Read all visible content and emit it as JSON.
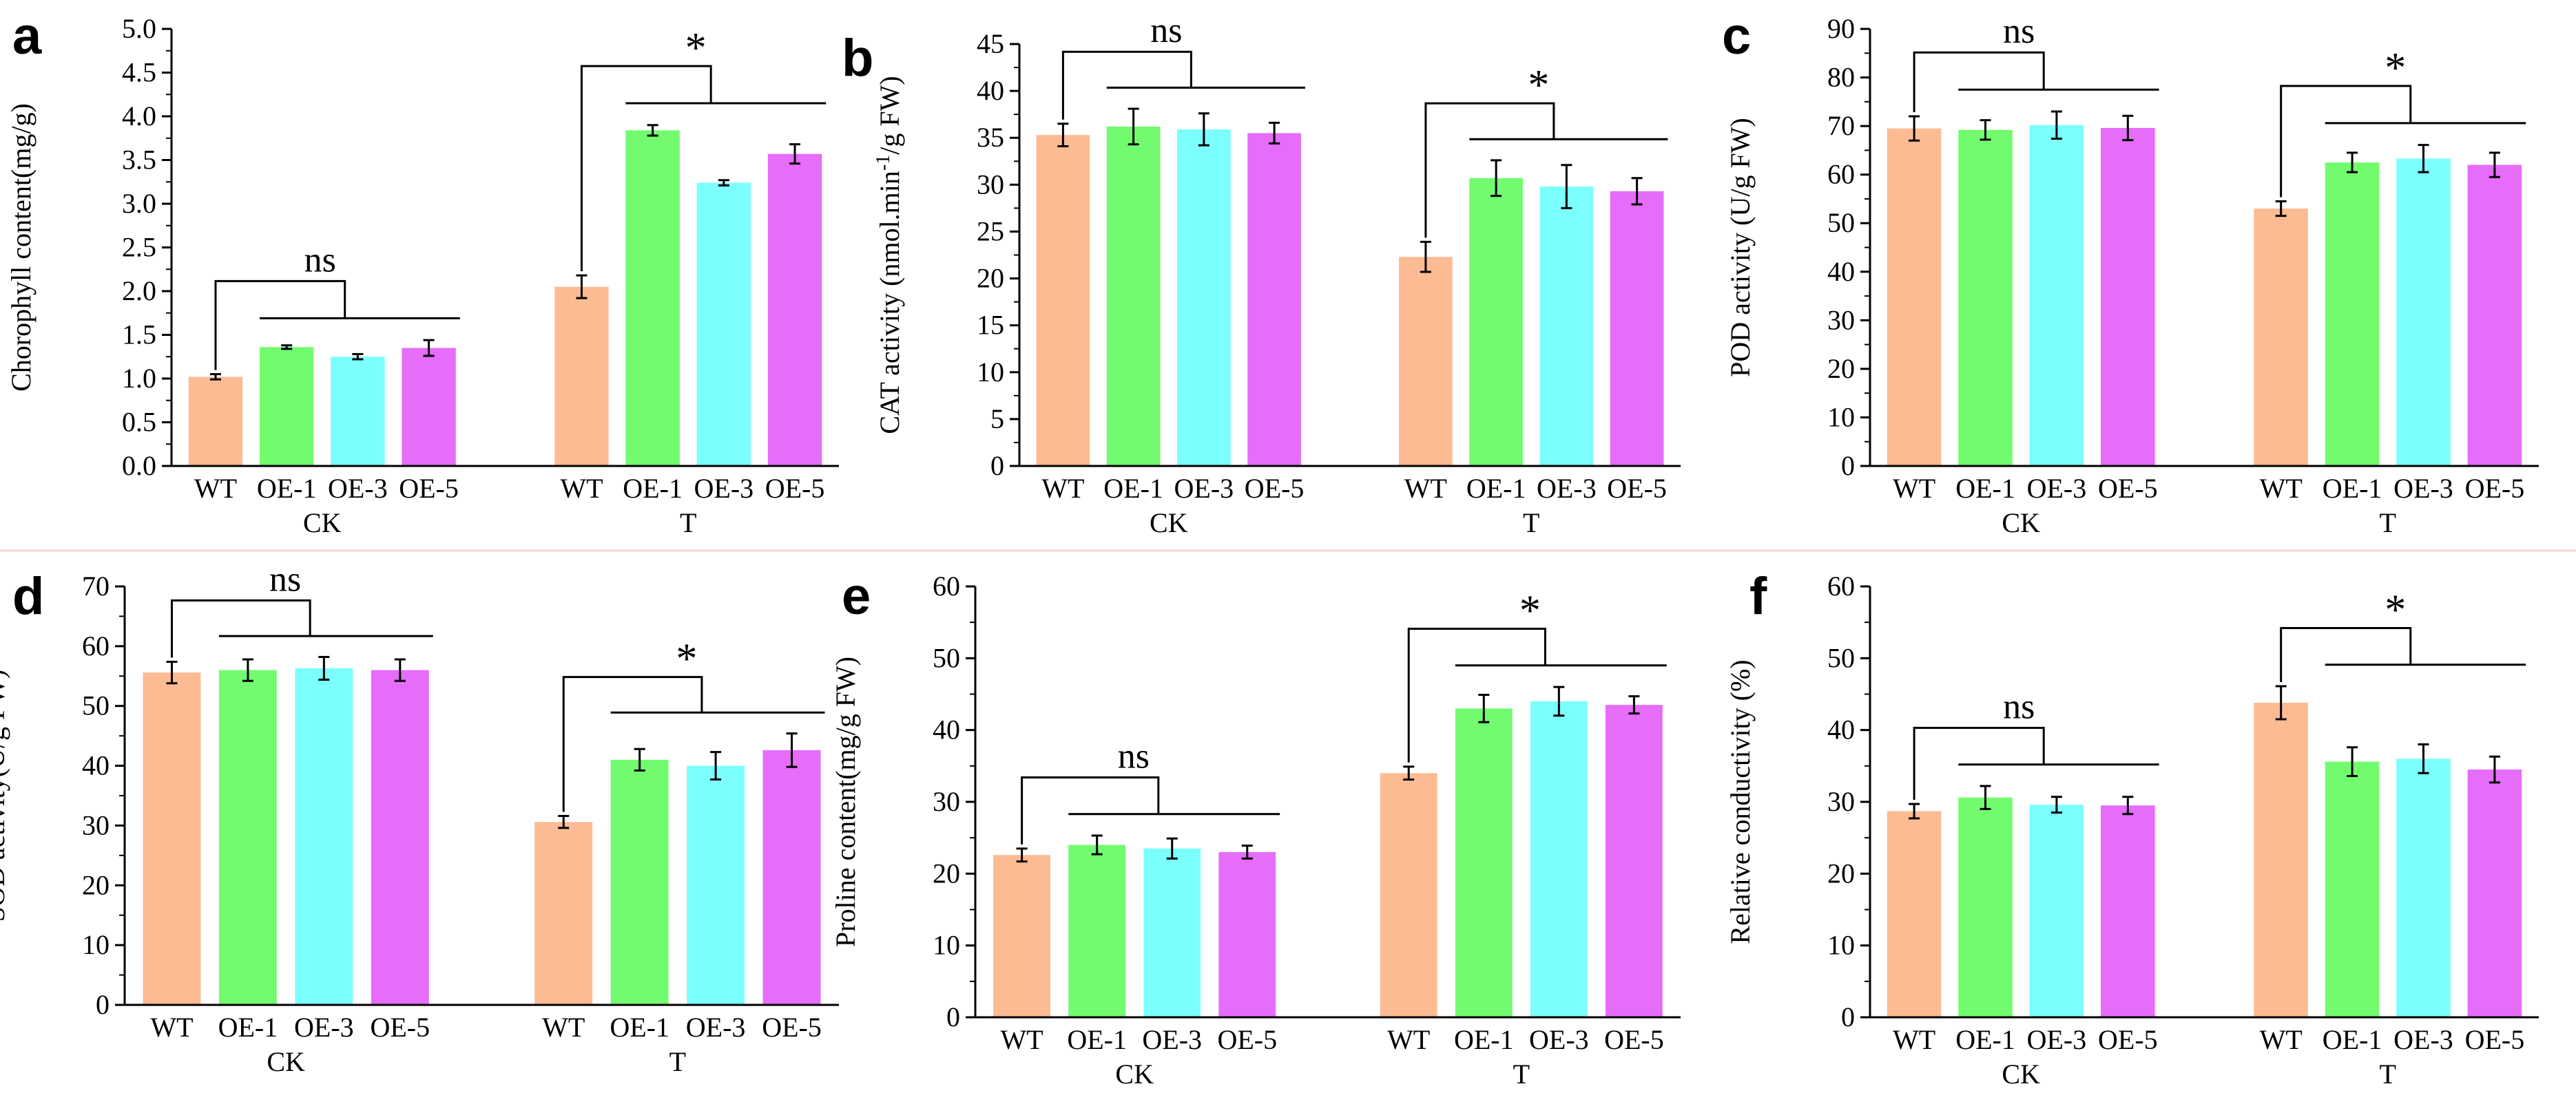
{
  "figure": {
    "group_labels": [
      "CK",
      "T"
    ],
    "bar_labels": [
      "WT",
      "OE-1",
      "OE-3",
      "OE-5"
    ],
    "colors": {
      "WT": "#FDBB94",
      "OE-1": "#73FB6F",
      "OE-3": "#7BFFFF",
      "OE-5": "#E66CFA",
      "axis": "#000000",
      "divider": "#F5D6D6"
    }
  },
  "chart_data": [
    {
      "type": "bar",
      "panel": "a",
      "ylabel": "Chorophyll content(mg/g)",
      "ylim": [
        0,
        5.0
      ],
      "yticks": [
        "0.0",
        "0.5",
        "1.0",
        "1.5",
        "2.0",
        "2.5",
        "3.0",
        "3.5",
        "4.0",
        "4.5",
        "5.0"
      ],
      "categories": [
        "CK",
        "T"
      ],
      "series": [
        {
          "name": "WT",
          "values": [
            1.02,
            2.05
          ],
          "errors": [
            0.03,
            0.13
          ]
        },
        {
          "name": "OE-1",
          "values": [
            1.36,
            3.84
          ],
          "errors": [
            0.02,
            0.06
          ]
        },
        {
          "name": "OE-3",
          "values": [
            1.25,
            3.24
          ],
          "errors": [
            0.03,
            0.03
          ]
        },
        {
          "name": "OE-5",
          "values": [
            1.35,
            3.57
          ],
          "errors": [
            0.09,
            0.11
          ]
        }
      ],
      "annotations": {
        "CK": "ns",
        "T": "*"
      }
    },
    {
      "type": "bar",
      "panel": "b",
      "ylabel": "CAT activity (nmol.min-1/g FW)",
      "ylabel_parts": [
        "CAT activity (nmol.min",
        "-1",
        "/g FW)"
      ],
      "ylim": [
        0,
        45
      ],
      "yticks": [
        "0",
        "5",
        "10",
        "15",
        "20",
        "25",
        "30",
        "35",
        "40",
        "45"
      ],
      "categories": [
        "CK",
        "T"
      ],
      "series": [
        {
          "name": "WT",
          "values": [
            35.3,
            22.3
          ],
          "errors": [
            1.2,
            1.6
          ]
        },
        {
          "name": "OE-1",
          "values": [
            36.2,
            30.7
          ],
          "errors": [
            1.9,
            1.9
          ]
        },
        {
          "name": "OE-3",
          "values": [
            35.9,
            29.8
          ],
          "errors": [
            1.7,
            2.3
          ]
        },
        {
          "name": "OE-5",
          "values": [
            35.5,
            29.3
          ],
          "errors": [
            1.1,
            1.4
          ]
        }
      ],
      "annotations": {
        "CK": "ns",
        "T": "*"
      }
    },
    {
      "type": "bar",
      "panel": "c",
      "ylabel": "POD activity (U/g FW)",
      "ylim": [
        0,
        90
      ],
      "yticks": [
        "0",
        "10",
        "20",
        "30",
        "40",
        "50",
        "60",
        "70",
        "80",
        "90"
      ],
      "categories": [
        "CK",
        "T"
      ],
      "series": [
        {
          "name": "WT",
          "values": [
            69.5,
            53.0
          ],
          "errors": [
            2.5,
            1.5
          ]
        },
        {
          "name": "OE-1",
          "values": [
            69.2,
            62.5
          ],
          "errors": [
            2.0,
            2.0
          ]
        },
        {
          "name": "OE-3",
          "values": [
            70.2,
            63.3
          ],
          "errors": [
            2.8,
            2.8
          ]
        },
        {
          "name": "OE-5",
          "values": [
            69.6,
            62.0
          ],
          "errors": [
            2.5,
            2.5
          ]
        }
      ],
      "annotations": {
        "CK": "ns",
        "T": "*"
      }
    },
    {
      "type": "bar",
      "panel": "d",
      "ylabel": "SOD activity(U/g FW)",
      "ylim": [
        0,
        70
      ],
      "yticks": [
        "0",
        "10",
        "20",
        "30",
        "40",
        "50",
        "60",
        "70"
      ],
      "categories": [
        "CK",
        "T"
      ],
      "series": [
        {
          "name": "WT",
          "values": [
            55.6,
            30.6
          ],
          "errors": [
            1.8,
            1.0
          ]
        },
        {
          "name": "OE-1",
          "values": [
            56.0,
            41.0
          ],
          "errors": [
            1.8,
            1.8
          ]
        },
        {
          "name": "OE-3",
          "values": [
            56.3,
            40.0
          ],
          "errors": [
            1.9,
            2.3
          ]
        },
        {
          "name": "OE-5",
          "values": [
            56.0,
            42.6
          ],
          "errors": [
            1.8,
            2.8
          ]
        }
      ],
      "annotations": {
        "CK": "ns",
        "T": "*"
      }
    },
    {
      "type": "bar",
      "panel": "e",
      "ylabel": "Proline content(mg/g FW)",
      "ylim": [
        0,
        60
      ],
      "yticks": [
        "0",
        "10",
        "20",
        "30",
        "40",
        "50",
        "60"
      ],
      "categories": [
        "CK",
        "T"
      ],
      "series": [
        {
          "name": "WT",
          "values": [
            22.6,
            34.0
          ],
          "errors": [
            0.9,
            0.9
          ]
        },
        {
          "name": "OE-1",
          "values": [
            24.0,
            43.0
          ],
          "errors": [
            1.3,
            1.9
          ]
        },
        {
          "name": "OE-3",
          "values": [
            23.5,
            44.0
          ],
          "errors": [
            1.4,
            2.0
          ]
        },
        {
          "name": "OE-5",
          "values": [
            23.0,
            43.5
          ],
          "errors": [
            0.9,
            1.2
          ]
        }
      ],
      "annotations": {
        "CK": "ns",
        "T": "*"
      }
    },
    {
      "type": "bar",
      "panel": "f",
      "ylabel": "Relative conductivity (%)",
      "ylim": [
        0,
        60
      ],
      "yticks": [
        "0",
        "10",
        "20",
        "30",
        "40",
        "50",
        "60"
      ],
      "categories": [
        "CK",
        "T"
      ],
      "series": [
        {
          "name": "WT",
          "values": [
            28.7,
            43.8
          ],
          "errors": [
            1.0,
            2.3
          ]
        },
        {
          "name": "OE-1",
          "values": [
            30.6,
            35.6
          ],
          "errors": [
            1.6,
            2.0
          ]
        },
        {
          "name": "OE-3",
          "values": [
            29.6,
            36.0
          ],
          "errors": [
            1.1,
            2.0
          ]
        },
        {
          "name": "OE-5",
          "values": [
            29.5,
            34.5
          ],
          "errors": [
            1.2,
            1.8
          ]
        }
      ],
      "annotations": {
        "CK": "ns",
        "T": "*"
      }
    }
  ]
}
